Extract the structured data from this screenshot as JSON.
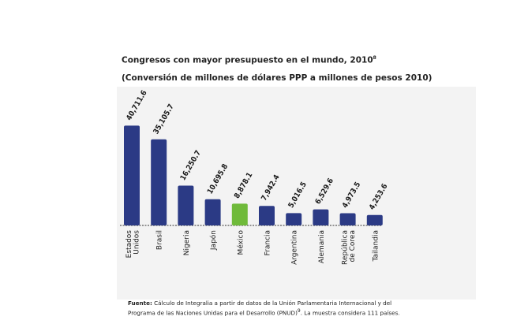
{
  "title": "Congresos con mayor presupuesto en el mundo, 2010",
  "title_sup": "8",
  "subtitle": "(Conversión de millones de dólares PPP a millones de pesos 2010)",
  "source": {
    "label": "Fuente:",
    "text": "Cálculo de Integralia a partir de datos de la Unión Parlamentaria Internacional y del Programa de las Naciones Unidas para el Desarrollo (PNUD)",
    "sup": "9",
    "tail": ". La muestra considera 111 países."
  },
  "colors": {
    "bar": "#2b3a85",
    "highlight": "#6fba3a",
    "panel": "#f3f3f3",
    "axis": "#333333"
  },
  "chart_data": {
    "type": "bar",
    "title": "Congresos con mayor presupuesto en el mundo, 2010",
    "xlabel": "",
    "ylabel": "",
    "ylim": [
      0,
      45000
    ],
    "categories": [
      [
        "Estados",
        "Unidos"
      ],
      [
        "Brasil"
      ],
      [
        "Nigeria"
      ],
      [
        "Japón"
      ],
      [
        "México"
      ],
      [
        "Francia"
      ],
      [
        "Argentina"
      ],
      [
        "Alemania"
      ],
      [
        "República",
        "de Corea"
      ],
      [
        "Tailandia"
      ]
    ],
    "values": [
      40711.6,
      35105.7,
      16250.7,
      10695.8,
      8878.1,
      7942.4,
      5016.5,
      6529.6,
      4973.5,
      4253.6
    ],
    "value_labels": [
      "40,711.6",
      "35,105.7",
      "16,250.7",
      "10,695.8",
      "8,878.1",
      "7,942.4",
      "5,016.5",
      "6,529.6",
      "4,973.5",
      "4,253.6"
    ],
    "highlight_index": 4
  }
}
